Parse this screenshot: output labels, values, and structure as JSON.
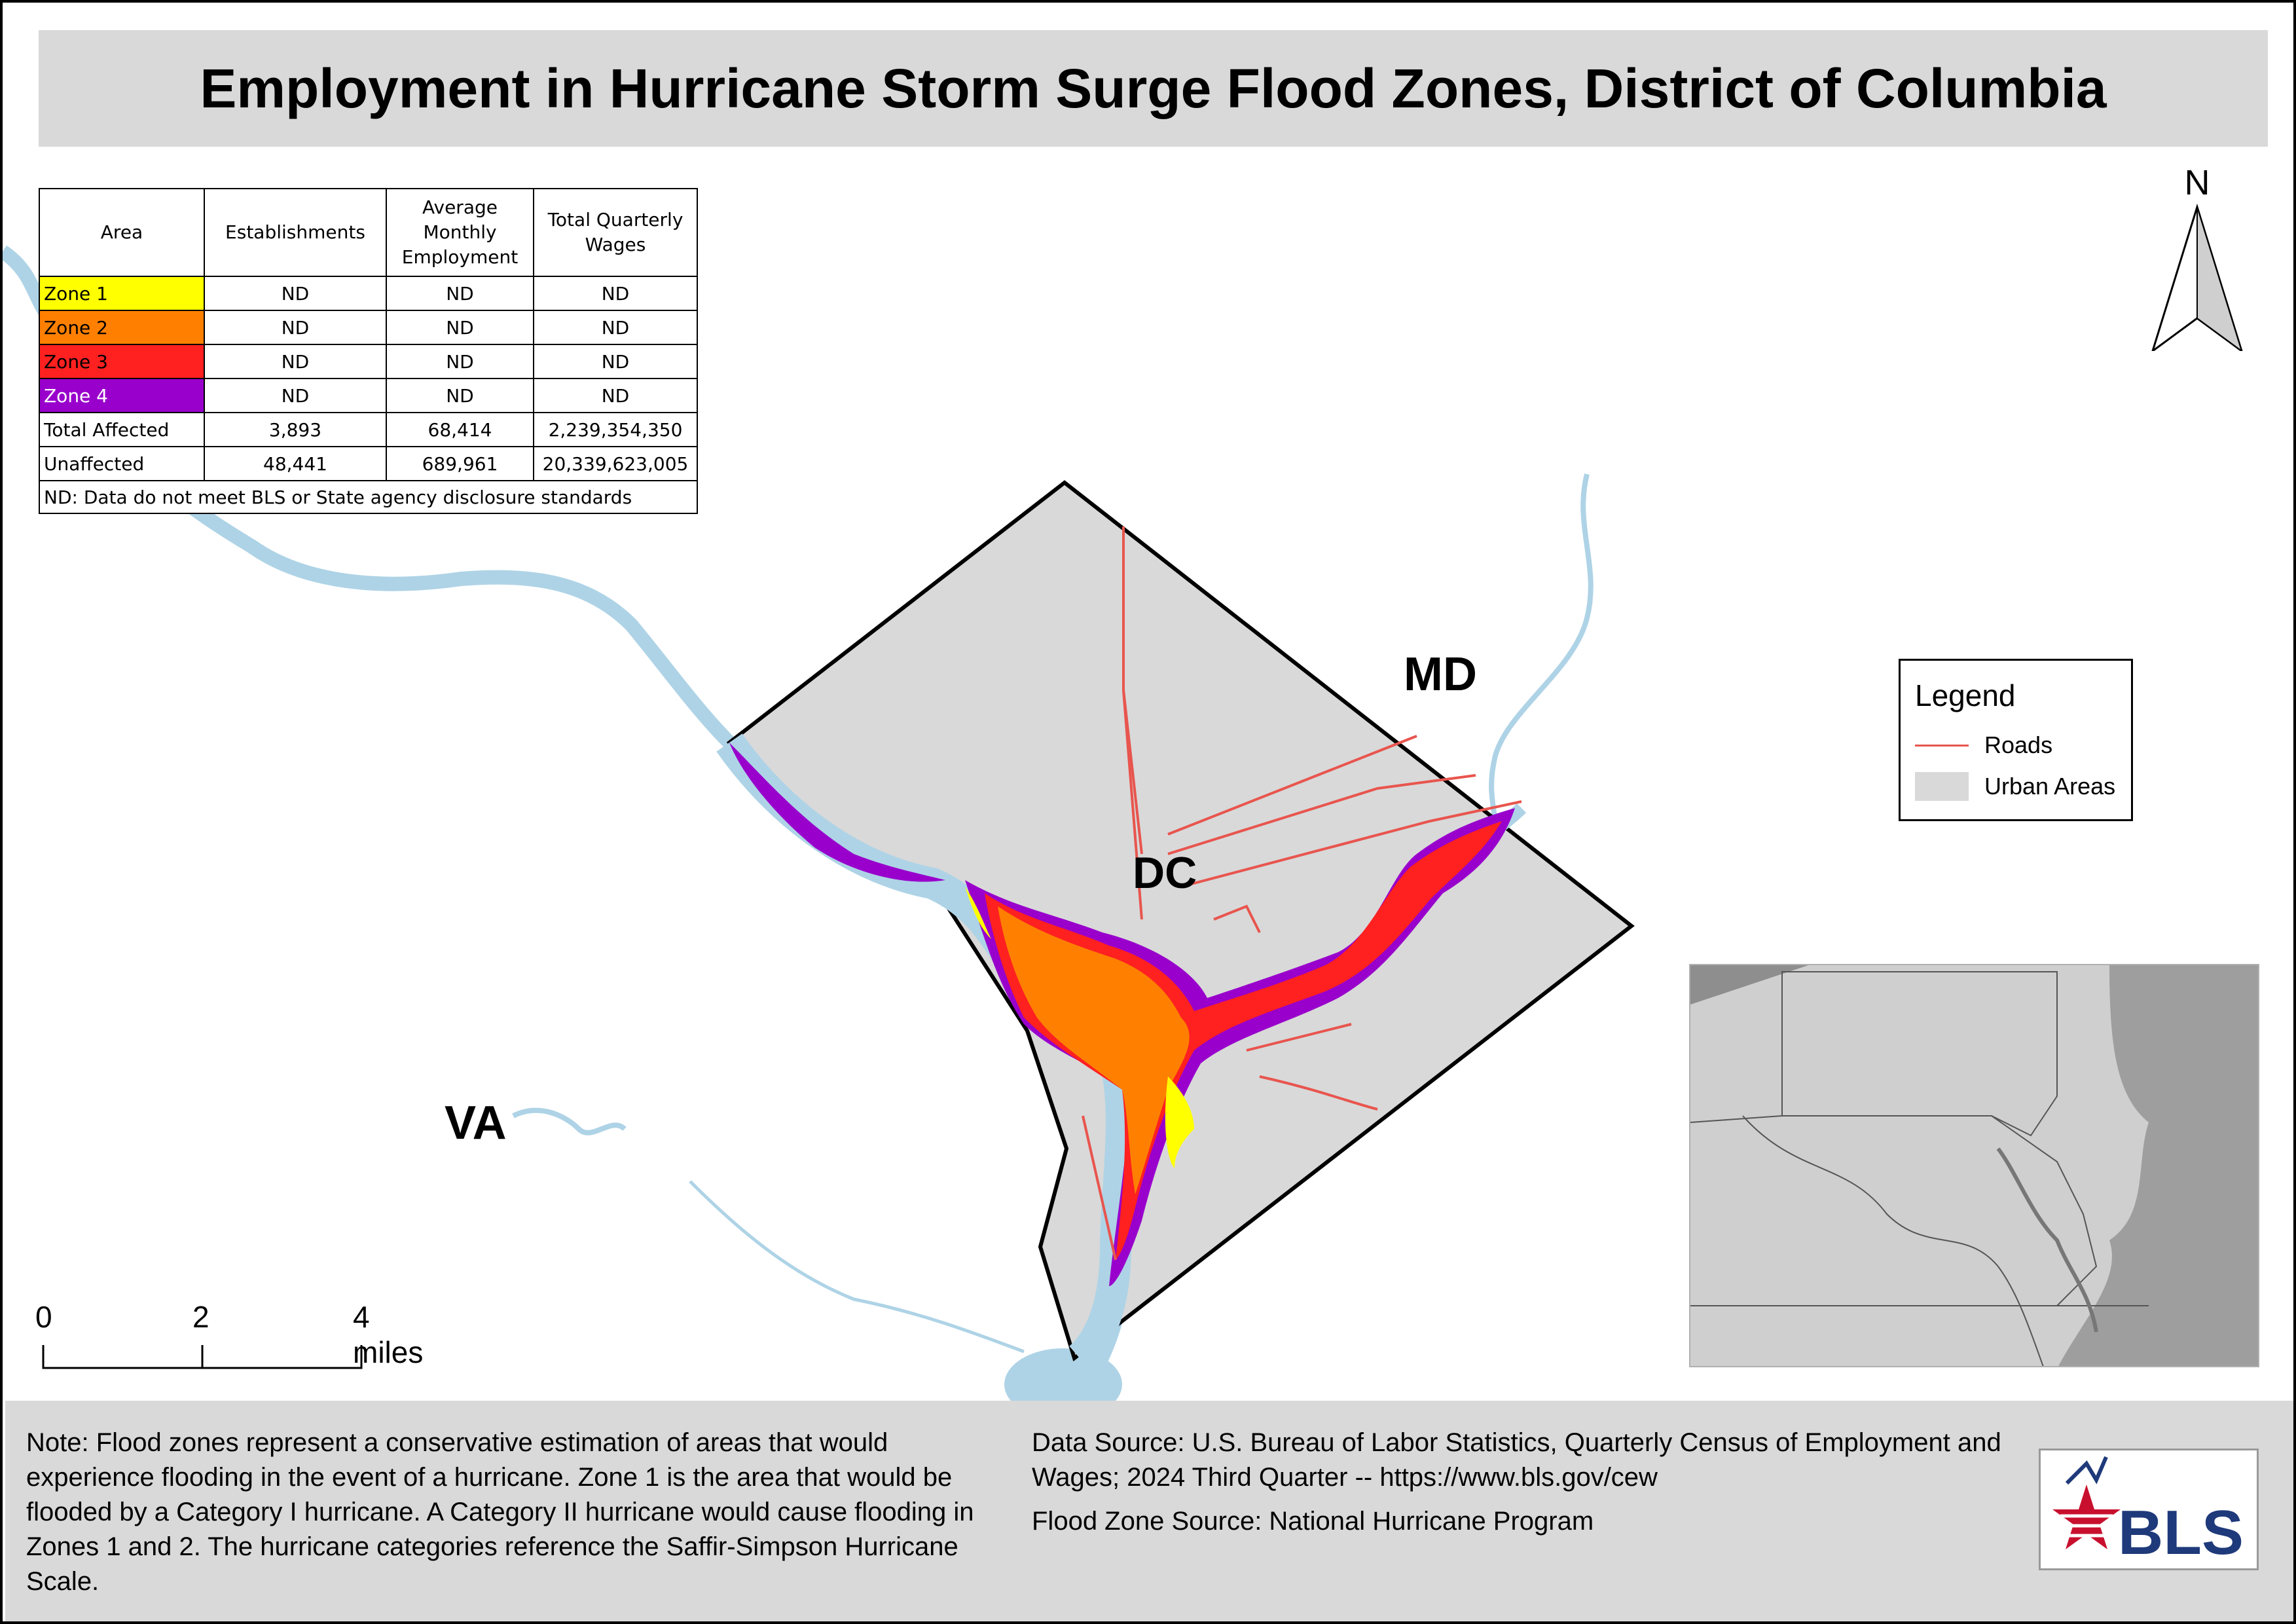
{
  "title": "Employment in Hurricane Storm Surge Flood Zones, District of Columbia",
  "table": {
    "headers": [
      "Area",
      "Establishments",
      "Average Monthly Employment",
      "Total Quarterly Wages"
    ],
    "zone_rows": [
      {
        "area": "Zone 1",
        "color": "#ffff00",
        "establishments": "ND",
        "employment": "ND",
        "wages": "ND"
      },
      {
        "area": "Zone 2",
        "color": "#ff8000",
        "establishments": "ND",
        "employment": "ND",
        "wages": "ND"
      },
      {
        "area": "Zone 3",
        "color": "#ff2020",
        "establishments": "ND",
        "employment": "ND",
        "wages": "ND"
      },
      {
        "area": "Zone 4",
        "color": "#9900cc",
        "establishments": "ND",
        "employment": "ND",
        "wages": "ND"
      }
    ],
    "summary_rows": [
      {
        "area": "Total Affected",
        "establishments": "3,893",
        "employment": "68,414",
        "wages": "2,239,354,350"
      },
      {
        "area": "Unaffected",
        "establishments": "48,441",
        "employment": "689,961",
        "wages": "20,339,623,005"
      }
    ],
    "footnote": "ND: Data do not meet BLS or State agency disclosure standards"
  },
  "labels": {
    "md": "MD",
    "dc": "DC",
    "va": "VA"
  },
  "north": "N",
  "legend": {
    "title": "Legend",
    "items": [
      {
        "label": "Roads",
        "color": "#e8554e"
      },
      {
        "label": "Urban Areas",
        "color": "#d9d9d9"
      }
    ]
  },
  "scale": {
    "ticks": [
      "0",
      "2",
      "4 miles"
    ]
  },
  "footer": {
    "note": "Note: Flood zones represent a conservative estimation of areas that would experience flooding in the event of a hurricane. Zone 1 is the area that would be flooded by a Category I hurricane. A Category II hurricane would cause flooding in Zones 1 and 2. The hurricane categories reference the Saffir-Simpson Hurricane Scale.",
    "data_source": "Data Source: U.S. Bureau of Labor Statistics, Quarterly Census of Employment and Wages; 2024 Third Quarter -- https://www.bls.gov/cew",
    "flood_source": "Flood Zone Source: National Hurricane Program"
  },
  "logo_text": "BLS",
  "colors": {
    "water": "#aed3e6",
    "urban": "#d9d9d9",
    "road": "#e8554e",
    "zone1": "#ffff00",
    "zone2": "#ff8000",
    "zone3": "#ff2020",
    "zone4": "#9900cc"
  }
}
